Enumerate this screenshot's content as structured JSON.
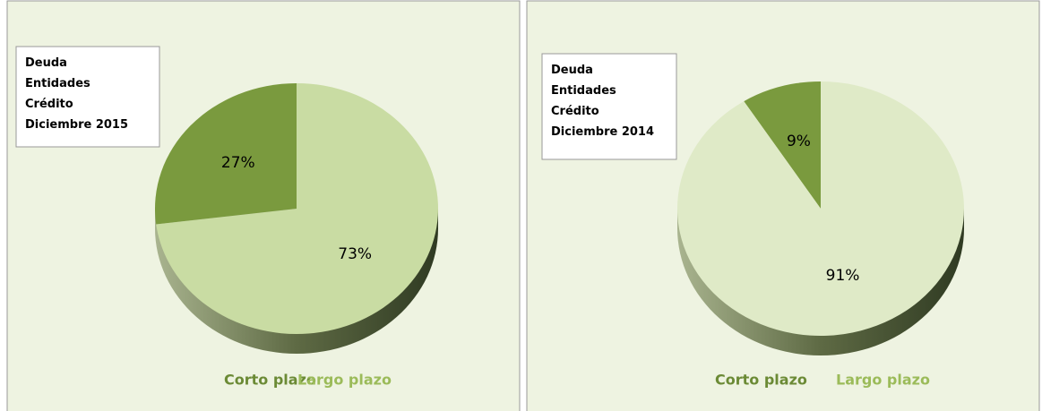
{
  "chart_data": [
    {
      "type": "pie",
      "title": [
        "Deuda",
        "Entidades",
        "Crédito",
        "Diciembre 2015"
      ],
      "categories": [
        "Corto plazo",
        "Largo plazo"
      ],
      "values": [
        27,
        73
      ],
      "value_labels": [
        "27%",
        "73%"
      ],
      "colors": [
        "#7a9a3e",
        "#c9dca3"
      ],
      "legend_colors": [
        "#6b8a35",
        "#9bbb59"
      ]
    },
    {
      "type": "pie",
      "title": [
        "Deuda",
        "Entidades",
        "Crédito",
        "Diciembre 2014"
      ],
      "categories": [
        "Corto plazo",
        "Largo plazo"
      ],
      "values": [
        9,
        91
      ],
      "value_labels": [
        "9%",
        "91%"
      ],
      "colors": [
        "#7a9a3e",
        "#dfeac7"
      ],
      "legend_colors": [
        "#6b8a35",
        "#9bbb59"
      ]
    }
  ]
}
